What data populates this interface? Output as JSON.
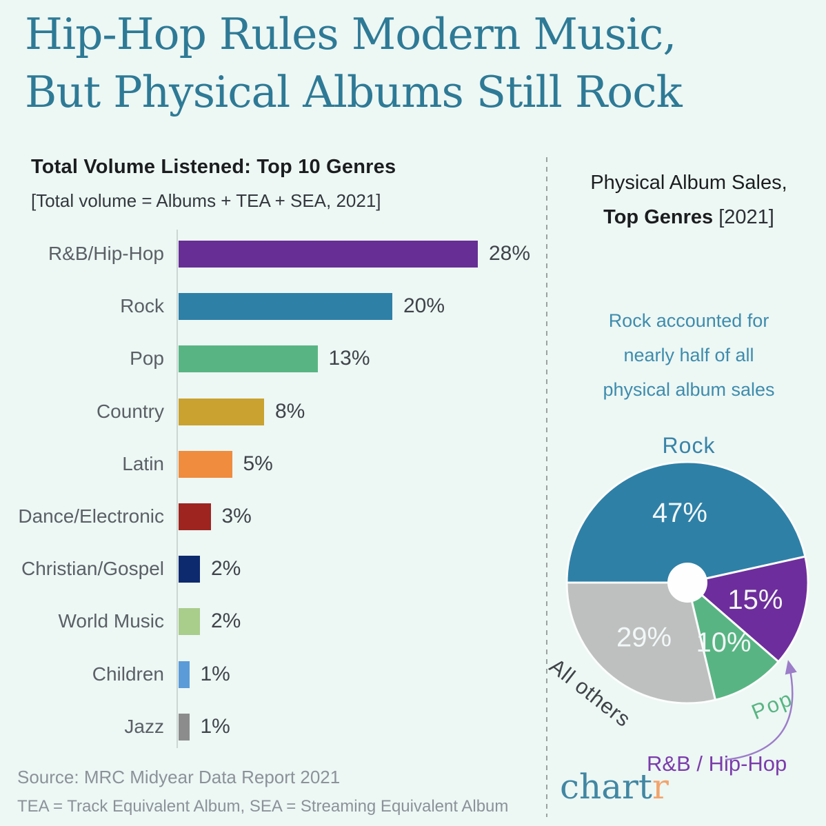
{
  "title": {
    "line1": "Hip-Hop Rules Modern Music,",
    "line2": "But Physical Albums Still Rock"
  },
  "left_chart": {
    "heading": "Total Volume Listened: Top 10 Genres",
    "subheading": "[Total volume = Albums + TEA + SEA, 2021]"
  },
  "right_panel": {
    "heading_line1": "Physical Album Sales,",
    "heading_line2_bold": "Top Genres",
    "heading_line2_normal": "[2021]",
    "annotation": [
      "Rock accounted for",
      "nearly half of all",
      "physical album sales"
    ],
    "rock_label": "Rock",
    "all_others_label": "All others",
    "pop_label": "Pop",
    "rnb_label": "R&B / Hip-Hop"
  },
  "footer": {
    "source": "Source: MRC Midyear Data Report 2021",
    "note": "TEA = Track Equivalent Album, SEA = Streaming Equivalent Album"
  },
  "logo": {
    "part1": "chart",
    "part2": "r"
  },
  "colors": {
    "background": "#edf7f4",
    "title_teal": "#2e7a96",
    "annotation_teal": "#3e8cad",
    "label_gray": "#5a6065",
    "value_gray": "#3f4449",
    "footer_gray": "#8b9299",
    "arrow_purple": "#9c7dc8",
    "rnb_text_purple": "#7b3cab",
    "logo_teal": "#4187a3",
    "logo_orange": "#f2a46d"
  },
  "chart_data": [
    {
      "type": "bar",
      "orientation": "horizontal",
      "title": "Total Volume Listened: Top 10 Genres",
      "subtitle": "[Total volume = Albums + TEA + SEA, 2021]",
      "categories": [
        "R&B/Hip-Hop",
        "Rock",
        "Pop",
        "Country",
        "Latin",
        "Dance/Electronic",
        "Christian/Gospel",
        "World Music",
        "Children",
        "Jazz"
      ],
      "values": [
        28,
        20,
        13,
        8,
        5,
        3,
        2,
        2,
        1,
        1
      ],
      "unit": "%",
      "xlim": [
        0,
        30
      ],
      "grid": false,
      "colors": [
        "#672e95",
        "#2e80a7",
        "#58b583",
        "#c9a22f",
        "#ef8c3e",
        "#9e2420",
        "#0e2a6e",
        "#a9cd8b",
        "#5b9bd8",
        "#8c8c8c"
      ],
      "source": "Source: MRC Midyear Data Report 2021",
      "note": "TEA = Track Equivalent Album, SEA = Streaming Equivalent Album"
    },
    {
      "type": "pie",
      "title": "Physical Album Sales, Top Genres [2021]",
      "labels": [
        "Rock",
        "R&B / Hip-Hop",
        "Pop",
        "All others"
      ],
      "values": [
        47,
        15,
        10,
        29
      ],
      "unit": "%",
      "colors": [
        "#2e80a7",
        "#6e2d9c",
        "#58b583",
        "#bec0c0"
      ],
      "donut_hole": true,
      "start": "west",
      "direction": "clockwise",
      "annotation": "Rock accounted for nearly half of all physical album sales"
    }
  ]
}
